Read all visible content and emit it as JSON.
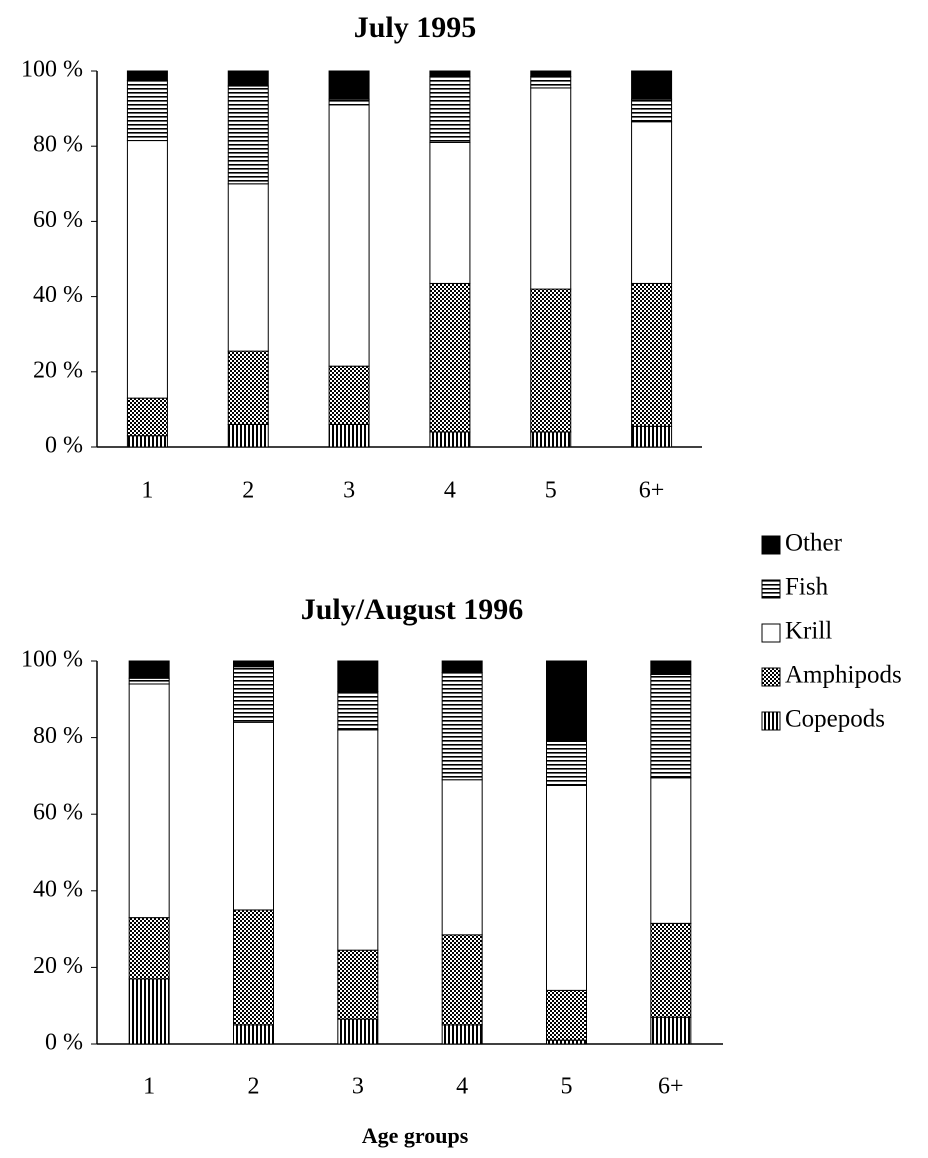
{
  "chart_data": [
    {
      "type": "stacked_bar",
      "title": "July 1995",
      "categories": [
        "1",
        "2",
        "3",
        "4",
        "5",
        "6+"
      ],
      "series": [
        {
          "name": "Copepods",
          "color": "#000000",
          "pattern": "vertical",
          "values": [
            3,
            6,
            6,
            4,
            4,
            5.5
          ]
        },
        {
          "name": "Amphipods",
          "color": "#000000",
          "pattern": "crosshatch",
          "values": [
            10,
            19.5,
            15.5,
            39.5,
            38,
            38
          ]
        },
        {
          "name": "Krill",
          "color": "#ffffff",
          "values": [
            68.5,
            44.5,
            69.5,
            37.5,
            53.5,
            43
          ]
        },
        {
          "name": "Fish",
          "color": "#000000",
          "pattern": "horizontal",
          "values": [
            16,
            26,
            1.5,
            17.5,
            3,
            6
          ]
        },
        {
          "name": "Other",
          "color": "#000000",
          "values": [
            2.5,
            4,
            7.5,
            1.5,
            1.5,
            7.5
          ]
        }
      ],
      "ylim": [
        0,
        100
      ],
      "yticks": [
        {
          "value": 0,
          "label": "0 %"
        },
        {
          "value": 20,
          "label": "20 %"
        },
        {
          "value": 40,
          "label": "40 %"
        },
        {
          "value": 60,
          "label": "60 %"
        },
        {
          "value": 80,
          "label": "80 %"
        },
        {
          "value": 100,
          "label": "100 %"
        }
      ],
      "grid": false
    },
    {
      "type": "stacked_bar",
      "title": "July/August 1996",
      "x_label": "Age groups",
      "categories": [
        "1",
        "2",
        "3",
        "4",
        "5",
        "6+"
      ],
      "series": [
        {
          "name": "Copepods",
          "color": "#000000",
          "pattern": "vertical",
          "values": [
            17,
            5,
            6.5,
            5,
            1,
            7
          ]
        },
        {
          "name": "Amphipods",
          "color": "#000000",
          "pattern": "crosshatch",
          "values": [
            16,
            30,
            18,
            23.5,
            13,
            24.5
          ]
        },
        {
          "name": "Krill",
          "color": "#ffffff",
          "values": [
            61,
            49,
            57.5,
            40.5,
            53.5,
            38
          ]
        },
        {
          "name": "Fish",
          "color": "#000000",
          "pattern": "horizontal",
          "values": [
            1.5,
            14.5,
            10,
            28,
            11.5,
            27
          ]
        },
        {
          "name": "Other",
          "color": "#000000",
          "values": [
            4.5,
            1.5,
            8,
            3,
            21,
            3.5
          ]
        }
      ],
      "ylim": [
        0,
        100
      ],
      "yticks": [
        {
          "value": 0,
          "label": "0 %"
        },
        {
          "value": 20,
          "label": "20 %"
        },
        {
          "value": 40,
          "label": "40 %"
        },
        {
          "value": 60,
          "label": "60 %"
        },
        {
          "value": 80,
          "label": "80 %"
        },
        {
          "value": 100,
          "label": "100 %"
        }
      ],
      "grid": false
    }
  ]
}
